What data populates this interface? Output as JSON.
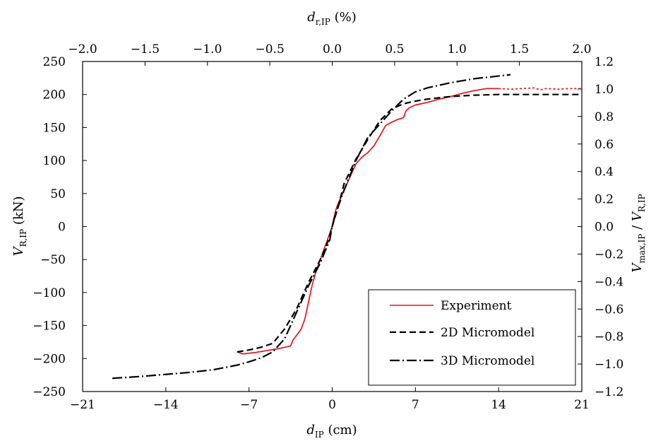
{
  "chart_data": {
    "type": "line",
    "title": "",
    "grid": false,
    "legend_position": "bottom-right",
    "x_bottom": {
      "label_main": "d",
      "label_sub": "IP",
      "label_unit": " (cm)",
      "range": [
        -21,
        21
      ],
      "ticks": [
        -21,
        -14,
        -7,
        0,
        7,
        14,
        21
      ],
      "tick_labels": [
        "−21",
        "−14",
        "−7",
        "0",
        "7",
        "14",
        "21"
      ]
    },
    "x_top": {
      "label_main": "d",
      "label_sub": "r,IP",
      "label_unit": " (%)",
      "range": [
        -2.0,
        2.0
      ],
      "ticks": [
        -2.0,
        -1.5,
        -1.0,
        -0.5,
        0.0,
        0.5,
        1.0,
        1.5,
        2.0
      ],
      "tick_labels": [
        "−2.0",
        "−1.5",
        "−1.0",
        "−0.5",
        "0.0",
        "0.5",
        "1.0",
        "1.5",
        "2.0"
      ]
    },
    "y_left": {
      "label_main": "V",
      "label_sub": "R,IP",
      "label_unit": " (kN)",
      "range": [
        -250,
        250
      ],
      "ticks": [
        -250,
        -200,
        -150,
        -100,
        -50,
        0,
        50,
        100,
        150,
        200,
        250
      ],
      "tick_labels": [
        "−250",
        "−200",
        "−150",
        "−100",
        "−50",
        "0",
        "50",
        "100",
        "150",
        "200",
        "250"
      ]
    },
    "y_right": {
      "label_main1": "V",
      "label_sub1": "max,IP",
      "label_sep": " / ",
      "label_main2": "V",
      "label_sub2": "R,IP",
      "range": [
        -1.2,
        1.2
      ],
      "ticks": [
        -1.2,
        -1.0,
        -0.8,
        -0.6,
        -0.4,
        -0.2,
        0.0,
        0.2,
        0.4,
        0.6,
        0.8,
        1.0,
        1.2
      ],
      "tick_labels": [
        "−1.2",
        "−1.0",
        "−0.8",
        "−0.6",
        "−0.4",
        "−0.2",
        "0.0",
        "0.2",
        "0.4",
        "0.6",
        "0.8",
        "1.0",
        "1.2"
      ]
    },
    "series": [
      {
        "name": "Experiment",
        "color": "#e8111b",
        "dash": "solid",
        "x": [
          -8.0,
          -7.5,
          -6.5,
          -5.5,
          -4.5,
          -3.5,
          -3.3,
          -3.0,
          -2.6,
          -2.3,
          -2.0,
          -1.7,
          -1.4,
          -1.0,
          -0.6,
          -0.3,
          -0.1,
          0.0,
          0.1,
          0.3,
          0.5,
          1.0,
          1.5,
          2.0,
          2.5,
          3.0,
          3.5,
          4.0,
          4.5,
          5.0,
          5.5,
          6.0,
          6.2,
          6.5,
          7.0,
          8.0,
          9.0,
          10.0,
          11.0,
          12.0,
          13.0,
          14.0
        ],
        "y": [
          -190,
          -193,
          -191,
          -188,
          -185,
          -181,
          -172,
          -165,
          -155,
          -140,
          -115,
          -90,
          -70,
          -50,
          -30,
          -15,
          -5,
          0,
          10,
          25,
          35,
          55,
          75,
          95,
          105,
          112,
          122,
          137,
          153,
          158,
          162,
          165,
          175,
          180,
          184,
          188,
          193,
          197,
          202,
          206,
          209,
          209
        ]
      },
      {
        "name": "Experiment (dotted continuation)",
        "color": "#e8111b",
        "dash": "dotted",
        "x": [
          14.0,
          15.0,
          16.0,
          17.0,
          17.5,
          18.0,
          19.0,
          20.0,
          21.0
        ],
        "y": [
          209,
          208,
          209,
          210,
          207,
          209,
          208,
          209,
          209
        ]
      },
      {
        "name": "2D Micromodel",
        "color": "#000000",
        "dash": "dashed",
        "x": [
          -8.0,
          -7.0,
          -6.0,
          -5.0,
          -4.0,
          -3.0,
          -2.0,
          -1.0,
          -0.3,
          0.0,
          0.5,
          1.0,
          2.0,
          3.0,
          4.0,
          5.0,
          6.0,
          7.0,
          8.0,
          9.0,
          10.0,
          12.0,
          14.0,
          16.0,
          18.0,
          21.0
        ],
        "y": [
          -190,
          -187,
          -183,
          -177,
          -155,
          -125,
          -85,
          -50,
          -20,
          0,
          30,
          65,
          102,
          132,
          160,
          178,
          186,
          190,
          193,
          195,
          197,
          199,
          200,
          200,
          200,
          200
        ]
      },
      {
        "name": "3D Micromodel",
        "color": "#000000",
        "dash": "dashdot",
        "x": [
          -18.5,
          -16.0,
          -14.0,
          -12.0,
          -10.0,
          -8.0,
          -7.0,
          -6.0,
          -5.0,
          -4.0,
          -3.0,
          -2.0,
          -1.0,
          -0.2,
          0.0,
          0.3,
          1.0,
          2.0,
          3.0,
          4.0,
          5.0,
          6.0,
          7.0,
          8.0,
          9.0,
          10.0,
          11.0,
          12.0,
          13.0,
          14.0,
          15.0
        ],
        "y": [
          -230,
          -227,
          -224,
          -221,
          -217,
          -210,
          -205,
          -199,
          -190,
          -170,
          -130,
          -90,
          -55,
          -20,
          0,
          20,
          55,
          100,
          135,
          155,
          175,
          193,
          204,
          210,
          214,
          218,
          221,
          224,
          226,
          228,
          230
        ]
      }
    ],
    "legend": [
      {
        "label": "Experiment",
        "color": "#e8111b",
        "dash": "solid"
      },
      {
        "label": "2D Micromodel",
        "color": "#000000",
        "dash": "dashed"
      },
      {
        "label": "3D Micromodel",
        "color": "#000000",
        "dash": "dashdot"
      }
    ]
  }
}
